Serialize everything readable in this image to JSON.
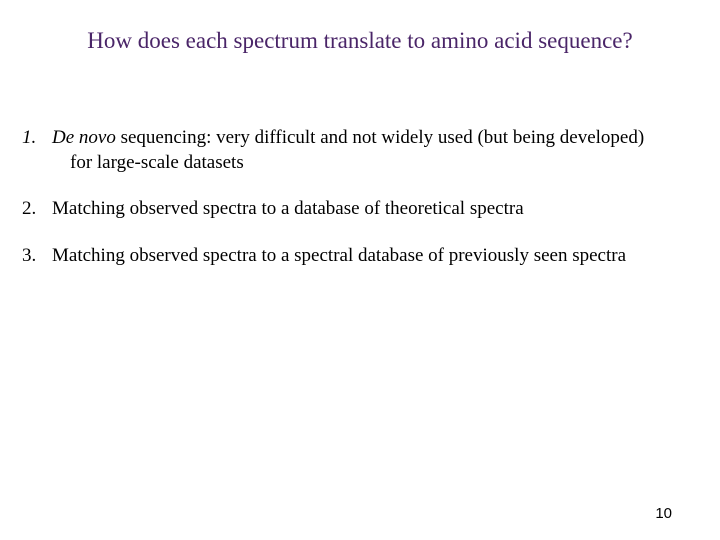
{
  "title": "How does each spectrum translate to amino acid sequence?",
  "items": [
    {
      "number": "1.",
      "italic_prefix": "De novo",
      "text_line1": " sequencing:  very difficult and not widely used (but being developed)",
      "text_line2": "for large-scale datasets",
      "number_italic": true
    },
    {
      "number": "2.",
      "text": "Matching observed spectra to a database of theoretical spectra",
      "number_italic": false
    },
    {
      "number": "3.",
      "text": "Matching observed spectra to a spectral database of previously seen spectra",
      "number_italic": false
    }
  ],
  "page_number": "10",
  "colors": {
    "title": "#4a2568",
    "body_text": "#000000",
    "background": "#ffffff"
  },
  "typography": {
    "title_fontsize": 23,
    "body_fontsize": 19,
    "page_number_fontsize": 15,
    "font_family": "Times New Roman"
  }
}
